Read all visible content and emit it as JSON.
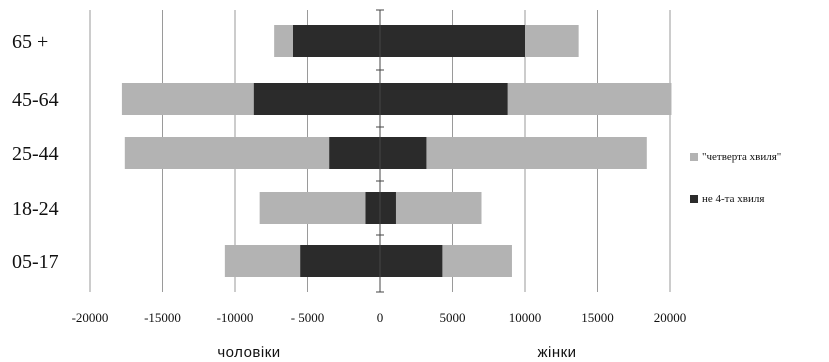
{
  "chart_data": {
    "type": "bar",
    "orientation": "horizontal",
    "stacking": "overlaid, diverging around 0",
    "categories": [
      "65 +",
      "45-64",
      "25-44",
      "18-24",
      "05-17"
    ],
    "x_ticks": [
      "-20000",
      "-15000",
      "-10000",
      "- 5000",
      "0",
      "5000",
      "10000",
      "15000",
      "20000"
    ],
    "xlim": [
      -20000,
      20000
    ],
    "x_axis_titles": {
      "left": "чоловіки",
      "right": "жінки"
    },
    "grid": "vertical",
    "legend_position": "right",
    "series": [
      {
        "name": "\"четверта хвиля\"",
        "color": "#b3b3b3",
        "ranges": [
          [
            -7300,
            13700
          ],
          [
            -17800,
            20100
          ],
          [
            -17600,
            18400
          ],
          [
            -8300,
            7000
          ],
          [
            -10700,
            9100
          ]
        ]
      },
      {
        "name": "не 4-та хвиля",
        "color": "#2b2b2b",
        "ranges": [
          [
            -6000,
            10000
          ],
          [
            -8700,
            8800
          ],
          [
            -3500,
            3200
          ],
          [
            -1000,
            1100
          ],
          [
            -5500,
            4300
          ]
        ]
      }
    ]
  }
}
